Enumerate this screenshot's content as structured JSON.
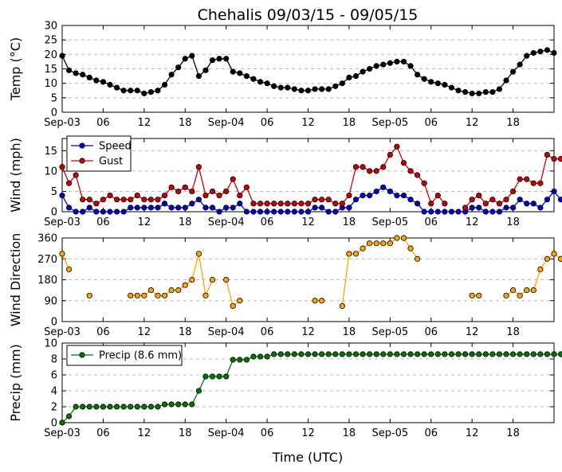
{
  "figure": {
    "title": "Chehalis 09/03/15 - 09/05/15",
    "xlabel": "Time (UTC)",
    "x_ticks": [
      {
        "h": 0,
        "label": "Sep-03"
      },
      {
        "h": 6,
        "label": "06"
      },
      {
        "h": 12,
        "label": "12"
      },
      {
        "h": 18,
        "label": "18"
      },
      {
        "h": 24,
        "label": "Sep-04"
      },
      {
        "h": 30,
        "label": "06"
      },
      {
        "h": 36,
        "label": "12"
      },
      {
        "h": 42,
        "label": "18"
      },
      {
        "h": 48,
        "label": "Sep-05"
      },
      {
        "h": 54,
        "label": "06"
      },
      {
        "h": 60,
        "label": "12"
      },
      {
        "h": 66,
        "label": "18"
      }
    ],
    "x_range_hours": [
      0,
      72
    ]
  },
  "chart_data": [
    {
      "type": "line",
      "ylabel": "Temp (°C)",
      "ylabel_display": "Temp (°C)",
      "ylim": [
        0,
        30
      ],
      "yticks": [
        0,
        5,
        10,
        15,
        20,
        25,
        30
      ],
      "grid": true,
      "series": [
        {
          "color": "#000000",
          "values": [
            19.5,
            14.5,
            13.5,
            13,
            12,
            11,
            10.5,
            9.5,
            8.5,
            7.5,
            7.5,
            7.5,
            6.5,
            7,
            7.5,
            9.5,
            13,
            15.5,
            18.5,
            19.5,
            12.5,
            14.5,
            18,
            18.5,
            18.5,
            14,
            13.5,
            12.5,
            11.5,
            10.5,
            10,
            9,
            8.5,
            8.5,
            8,
            7.5,
            7.5,
            8,
            8,
            8,
            9,
            10,
            12,
            12.5,
            14,
            15,
            16,
            16.5,
            17,
            17.5,
            17.5,
            16,
            13,
            11.5,
            10.5,
            10,
            9.5,
            8.5,
            7.5,
            7,
            6.5,
            6.5,
            7,
            7,
            8,
            11,
            14,
            16.5,
            19.5,
            20.5,
            21,
            21.5,
            20.5
          ]
        }
      ]
    },
    {
      "type": "line",
      "ylabel": "Wind (mph)",
      "ylim": [
        0,
        18
      ],
      "yticks": [
        0,
        5,
        10,
        15
      ],
      "grid": true,
      "legend": "top-left",
      "series": [
        {
          "name": "Speed",
          "color": "#0000cc",
          "values": [
            4,
            1,
            0,
            0,
            1,
            0,
            0,
            0,
            0,
            0,
            1,
            1,
            1,
            1,
            1,
            2,
            1,
            1,
            1,
            2,
            3,
            1,
            1,
            0,
            1,
            1,
            2,
            0,
            0,
            0,
            0,
            0,
            0,
            0,
            0,
            0,
            0,
            1,
            1,
            0,
            0,
            1,
            1,
            3,
            4,
            4,
            5,
            6,
            5,
            4,
            4,
            3,
            2,
            0,
            0,
            0,
            0,
            0,
            0,
            0,
            1,
            1,
            0,
            0,
            0,
            1,
            1,
            3,
            2,
            2,
            1,
            3,
            5,
            3
          ]
        },
        {
          "name": "Gust",
          "color": "#cc0000",
          "values": [
            11,
            7,
            9,
            3,
            3,
            2,
            3,
            4,
            3,
            3,
            3,
            4,
            3,
            3,
            3,
            4,
            6,
            5,
            6,
            5,
            11,
            4,
            5,
            4,
            5,
            8,
            4,
            6,
            2,
            2,
            2,
            2,
            2,
            2,
            2,
            2,
            2,
            3,
            3,
            3,
            2,
            2,
            4,
            11,
            11,
            10,
            10,
            11,
            14,
            16,
            12,
            10,
            9,
            7,
            2,
            4,
            2,
            null,
            null,
            1,
            3,
            4,
            2,
            3,
            2,
            3,
            5,
            8,
            8,
            7,
            7,
            14,
            13,
            13
          ]
        }
      ]
    },
    {
      "type": "line",
      "ylabel": "Wind Direction",
      "ylim": [
        0,
        360
      ],
      "yticks": [
        0,
        90,
        180,
        270,
        360
      ],
      "grid": true,
      "series": [
        {
          "color": "#ffa500",
          "values": [
            292,
            225,
            null,
            null,
            112,
            null,
            null,
            null,
            null,
            null,
            112,
            112,
            112,
            135,
            112,
            112,
            135,
            135,
            157,
            180,
            292,
            112,
            180,
            null,
            180,
            67,
            90,
            null,
            null,
            null,
            null,
            null,
            null,
            null,
            null,
            null,
            null,
            90,
            90,
            null,
            null,
            67,
            292,
            292,
            315,
            337,
            337,
            337,
            337,
            360,
            360,
            315,
            270,
            null,
            null,
            null,
            null,
            null,
            null,
            null,
            112,
            112,
            null,
            null,
            null,
            112,
            135,
            112,
            135,
            135,
            225,
            270,
            292,
            270
          ]
        }
      ]
    },
    {
      "type": "line",
      "ylabel": "Precip (mm)",
      "ylim": [
        0,
        10
      ],
      "yticks": [
        0,
        2,
        4,
        6,
        8,
        10
      ],
      "grid": true,
      "legend": "top-left",
      "series": [
        {
          "name": "Precip (8.6 mm)",
          "color": "#007700",
          "values": [
            0,
            0.8,
            2,
            2,
            2,
            2,
            2,
            2,
            2,
            2,
            2,
            2,
            2,
            2,
            2,
            2.3,
            2.3,
            2.3,
            2.3,
            2.3,
            4,
            5.8,
            5.8,
            5.8,
            5.8,
            7.9,
            7.9,
            7.9,
            8.3,
            8.3,
            8.3,
            8.6,
            8.6,
            8.6,
            8.6,
            8.6,
            8.6,
            8.6,
            8.6,
            8.6,
            8.6,
            8.6,
            8.6,
            8.6,
            8.6,
            8.6,
            8.6,
            8.6,
            8.6,
            8.6,
            8.6,
            8.6,
            8.6,
            8.6,
            8.6,
            8.6,
            8.6,
            8.6,
            8.6,
            8.6,
            8.6,
            8.6,
            8.6,
            8.6,
            8.6,
            8.6,
            8.6,
            8.6,
            8.6,
            8.6,
            8.6,
            8.6,
            8.6,
            8.6
          ]
        }
      ]
    }
  ]
}
